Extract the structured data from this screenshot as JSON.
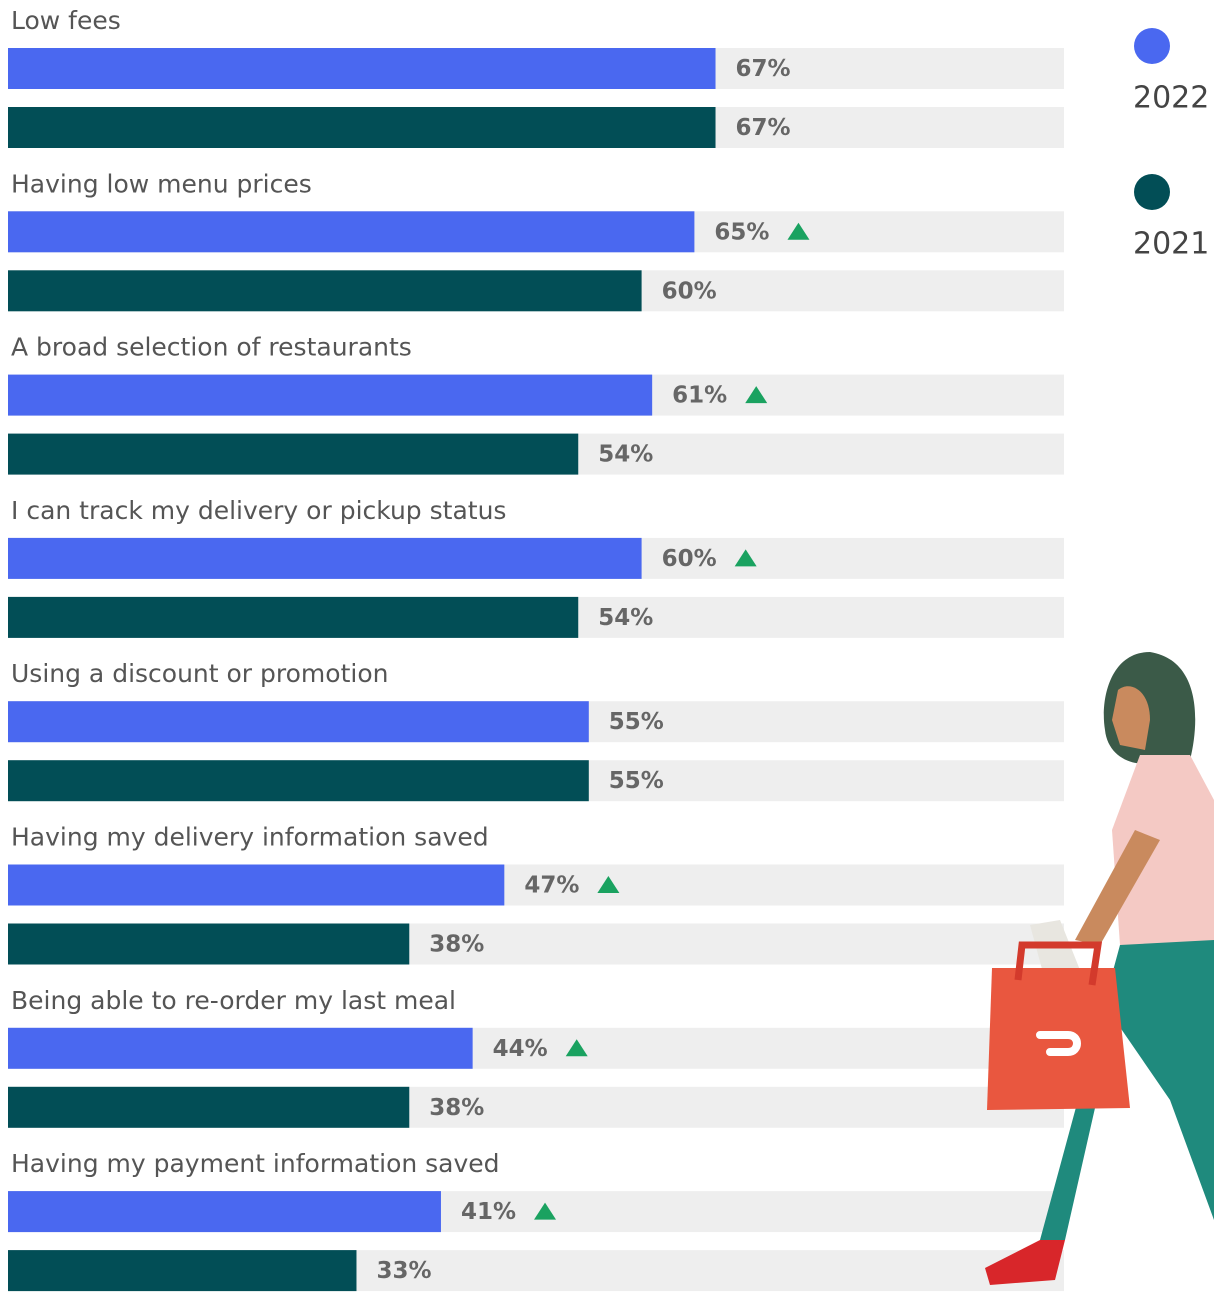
{
  "chart_data": {
    "type": "bar",
    "orientation": "horizontal",
    "categories": [
      "Low fees",
      "Having low menu prices",
      "A broad selection of restaurants",
      "I can track my delivery or pickup status",
      "Using a discount or promotion",
      "Having my delivery information saved",
      "Being able to re-order my last meal",
      "Having my payment information saved"
    ],
    "xlim": [
      0,
      100
    ],
    "track_color": "#eeeeee",
    "increase_marker_color": "#1aa260",
    "series": [
      {
        "name": "2022",
        "color": "#4a68f0",
        "values": [
          67,
          65,
          61,
          60,
          55,
          47,
          44,
          41
        ],
        "value_labels": [
          "67%",
          "65%",
          "61%",
          "60%",
          "55%",
          "47%",
          "44%",
          "41%"
        ],
        "significant_increase": [
          false,
          true,
          true,
          true,
          false,
          true,
          true,
          true
        ]
      },
      {
        "name": "2021",
        "color": "#024e56",
        "values": [
          67,
          60,
          54,
          54,
          55,
          38,
          38,
          33
        ],
        "value_labels": [
          "67%",
          "60%",
          "54%",
          "54%",
          "55%",
          "38%",
          "38%",
          "33%"
        ]
      }
    ],
    "legend": "right"
  }
}
